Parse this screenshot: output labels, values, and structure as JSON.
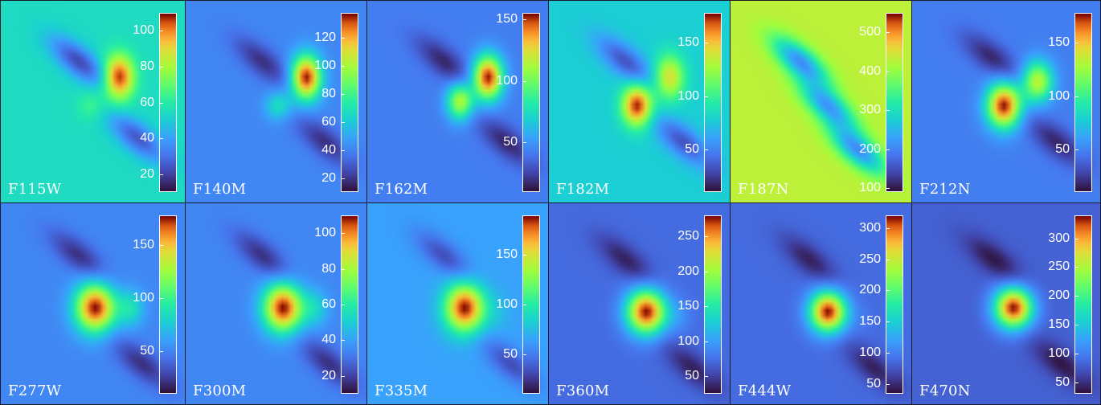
{
  "panels": [
    {
      "filter": "F115W",
      "ticks": [
        20,
        40,
        60,
        80,
        100
      ],
      "range": [
        10,
        110
      ],
      "bg": 0.44,
      "blobs": [
        {
          "u": 0.5,
          "v": 0.38,
          "a": 1.0,
          "s": 0.045,
          "sy": 0.11
        },
        {
          "u": 0.38,
          "v": 0.52,
          "a": 0.55,
          "s": 0.04,
          "sy": 0.07
        }
      ],
      "lobes": [
        {
          "u": 0.33,
          "v": 0.3,
          "a": -0.55
        },
        {
          "u": 0.58,
          "v": 0.68,
          "a": -0.5
        }
      ]
    },
    {
      "filter": "F140M",
      "ticks": [
        20,
        40,
        60,
        80,
        100,
        120
      ],
      "range": [
        10,
        138
      ],
      "bg": 0.24,
      "blobs": [
        {
          "u": 0.52,
          "v": 0.38,
          "a": 1.0,
          "s": 0.045,
          "sy": 0.11
        },
        {
          "u": 0.4,
          "v": 0.52,
          "a": 0.45,
          "s": 0.04,
          "sy": 0.07
        }
      ],
      "lobes": [
        {
          "u": 0.33,
          "v": 0.3,
          "a": -0.3
        },
        {
          "u": 0.6,
          "v": 0.7,
          "a": -0.3
        }
      ]
    },
    {
      "filter": "F162M",
      "ticks": [
        50,
        100,
        150
      ],
      "range": [
        10,
        155
      ],
      "bg": 0.22,
      "blobs": [
        {
          "u": 0.52,
          "v": 0.38,
          "a": 1.0,
          "s": 0.045,
          "sy": 0.11
        },
        {
          "u": 0.4,
          "v": 0.5,
          "a": 0.72,
          "s": 0.04,
          "sy": 0.09
        }
      ],
      "lobes": [
        {
          "u": 0.33,
          "v": 0.3,
          "a": -0.3
        },
        {
          "u": 0.6,
          "v": 0.7,
          "a": -0.3
        }
      ]
    },
    {
      "filter": "F182M",
      "ticks": [
        50,
        100,
        150
      ],
      "range": [
        10,
        178
      ],
      "bg": 0.4,
      "blobs": [
        {
          "u": 0.52,
          "v": 0.38,
          "a": 0.8,
          "s": 0.045,
          "sy": 0.11
        },
        {
          "u": 0.38,
          "v": 0.52,
          "a": 1.0,
          "s": 0.045,
          "sy": 0.1
        }
      ],
      "lobes": [
        {
          "u": 0.33,
          "v": 0.3,
          "a": -0.45
        },
        {
          "u": 0.58,
          "v": 0.7,
          "a": -0.45
        }
      ]
    },
    {
      "filter": "F187N",
      "ticks": [
        100,
        200,
        300,
        400,
        500
      ],
      "range": [
        90,
        550
      ],
      "bg": 0.74,
      "blobs": [],
      "lobes": [
        {
          "u": 0.3,
          "v": 0.3,
          "a": -0.8
        },
        {
          "u": 0.42,
          "v": 0.52,
          "a": -0.75
        },
        {
          "u": 0.55,
          "v": 0.74,
          "a": -0.8
        }
      ]
    },
    {
      "filter": "F212N",
      "ticks": [
        50,
        100,
        150
      ],
      "range": [
        10,
        178
      ],
      "bg": 0.22,
      "blobs": [
        {
          "u": 0.52,
          "v": 0.4,
          "a": 0.75,
          "s": 0.045,
          "sy": 0.1
        },
        {
          "u": 0.38,
          "v": 0.52,
          "a": 1.0,
          "s": 0.05,
          "sy": 0.11
        }
      ],
      "lobes": [
        {
          "u": 0.33,
          "v": 0.28,
          "a": -0.3
        },
        {
          "u": 0.6,
          "v": 0.7,
          "a": -0.3
        }
      ]
    },
    {
      "filter": "F277W",
      "ticks": [
        50,
        100,
        150
      ],
      "range": [
        10,
        178
      ],
      "bg": 0.24,
      "blobs": [
        {
          "u": 0.4,
          "v": 0.52,
          "a": 1.0,
          "s": 0.06,
          "sy": 0.12
        },
        {
          "u": 0.55,
          "v": 0.52,
          "a": 0.45,
          "s": 0.04,
          "sy": 0.09
        }
      ],
      "lobes": [
        {
          "u": 0.33,
          "v": 0.26,
          "a": -0.3
        },
        {
          "u": 0.6,
          "v": 0.8,
          "a": -0.3
        }
      ]
    },
    {
      "filter": "F300M",
      "ticks": [
        20,
        40,
        60,
        80,
        100
      ],
      "range": [
        10,
        110
      ],
      "bg": 0.24,
      "blobs": [
        {
          "u": 0.42,
          "v": 0.52,
          "a": 1.0,
          "s": 0.06,
          "sy": 0.12
        },
        {
          "u": 0.56,
          "v": 0.52,
          "a": 0.4,
          "s": 0.04,
          "sy": 0.09
        }
      ],
      "lobes": [
        {
          "u": 0.33,
          "v": 0.26,
          "a": -0.3
        },
        {
          "u": 0.62,
          "v": 0.8,
          "a": -0.3
        }
      ]
    },
    {
      "filter": "F335M",
      "ticks": [
        50,
        100,
        150
      ],
      "range": [
        10,
        190
      ],
      "bg": 0.3,
      "blobs": [
        {
          "u": 0.42,
          "v": 0.52,
          "a": 1.0,
          "s": 0.06,
          "sy": 0.12
        },
        {
          "u": 0.56,
          "v": 0.54,
          "a": 0.35,
          "s": 0.04,
          "sy": 0.09
        }
      ],
      "lobes": [
        {
          "u": 0.33,
          "v": 0.26,
          "a": -0.3
        },
        {
          "u": 0.62,
          "v": 0.8,
          "a": -0.3
        }
      ]
    },
    {
      "filter": "F360M",
      "ticks": [
        50,
        100,
        150,
        200,
        250
      ],
      "range": [
        25,
        280
      ],
      "bg": 0.18,
      "blobs": [
        {
          "u": 0.42,
          "v": 0.54,
          "a": 1.0,
          "s": 0.06,
          "sy": 0.11
        },
        {
          "u": 0.56,
          "v": 0.56,
          "a": 0.25,
          "s": 0.04,
          "sy": 0.08
        }
      ],
      "lobes": [
        {
          "u": 0.33,
          "v": 0.28,
          "a": -0.25
        },
        {
          "u": 0.62,
          "v": 0.82,
          "a": -0.25
        }
      ]
    },
    {
      "filter": "F444W",
      "ticks": [
        50,
        100,
        150,
        200,
        250,
        300
      ],
      "range": [
        35,
        320
      ],
      "bg": 0.18,
      "blobs": [
        {
          "u": 0.42,
          "v": 0.54,
          "a": 1.0,
          "s": 0.055,
          "sy": 0.1
        },
        {
          "u": 0.56,
          "v": 0.58,
          "a": 0.2,
          "s": 0.04,
          "sy": 0.08
        }
      ],
      "lobes": [
        {
          "u": 0.34,
          "v": 0.28,
          "a": -0.25
        },
        {
          "u": 0.62,
          "v": 0.82,
          "a": -0.25
        }
      ]
    },
    {
      "filter": "F470N",
      "ticks": [
        50,
        100,
        150,
        200,
        250,
        300
      ],
      "range": [
        30,
        340
      ],
      "bg": 0.16,
      "blobs": [
        {
          "u": 0.42,
          "v": 0.52,
          "a": 1.0,
          "s": 0.055,
          "sy": 0.1
        }
      ],
      "lobes": [
        {
          "u": 0.34,
          "v": 0.28,
          "a": -0.25
        },
        {
          "u": 0.62,
          "v": 0.8,
          "a": -0.25
        }
      ]
    }
  ]
}
